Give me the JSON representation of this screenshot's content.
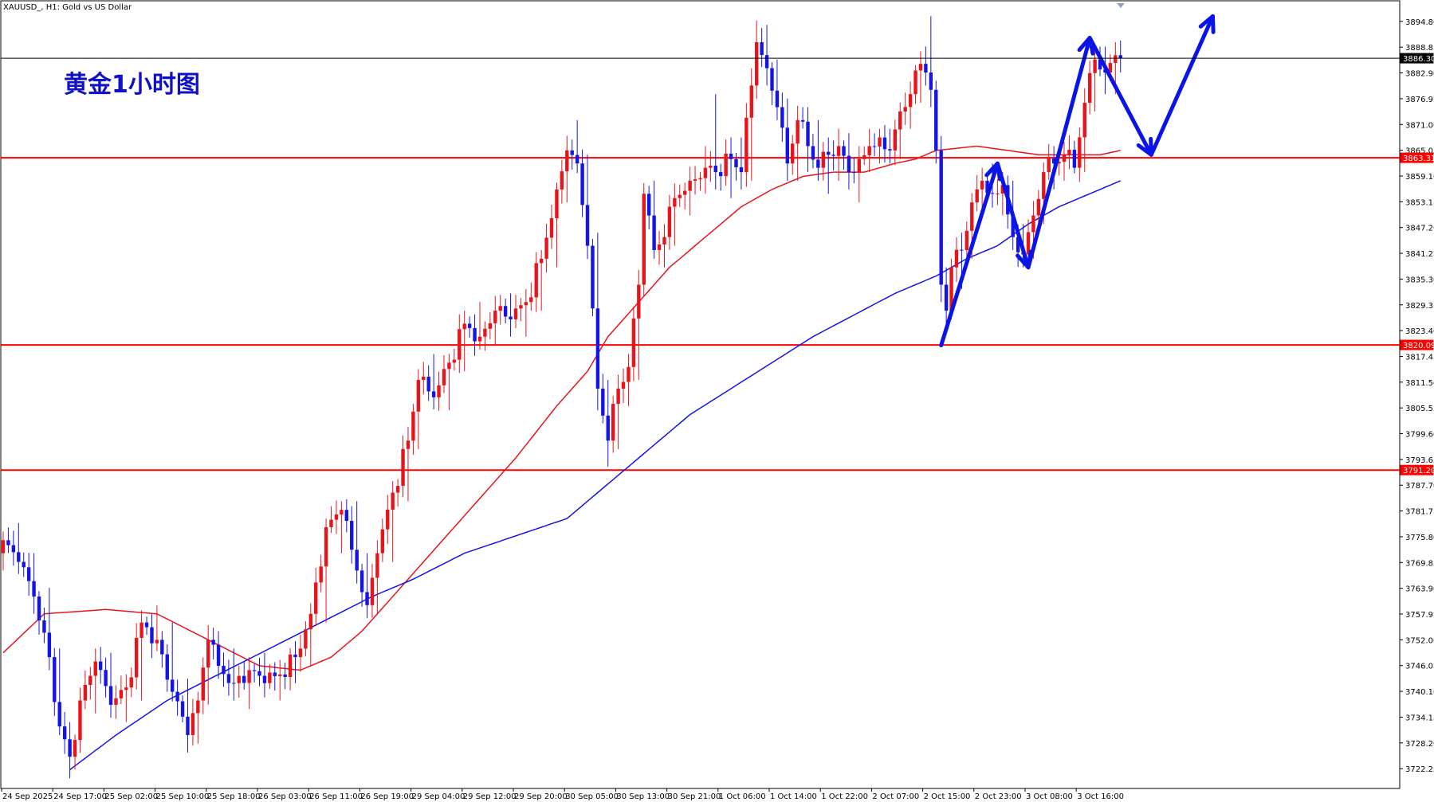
{
  "header": {
    "symbol": "XAUUSD_, H1:  Gold vs US Dollar"
  },
  "annotation": {
    "title": "黄金1小时图"
  },
  "colors": {
    "bull": "#e8141c",
    "bear": "#1414e6",
    "ma_fast": "#e8141c",
    "ma_slow": "#1414e6",
    "level": "#ff0000",
    "arrow": "#0a14e6"
  },
  "chart_data": {
    "type": "candlestick",
    "title": "",
    "ylim": [
      3717.0,
      3899.0
    ],
    "price_axis_ticks": [
      "3894.80",
      "3888.85",
      "3882.90",
      "3876.95",
      "3871.00",
      "3865.05",
      "3859.10",
      "3853.15",
      "3847.20",
      "3841.25",
      "3835.30",
      "3829.35",
      "3823.40",
      "3817.45",
      "3811.50",
      "3805.55",
      "3799.60",
      "3793.65",
      "3787.70",
      "3781.75",
      "3775.80",
      "3769.85",
      "3763.90",
      "3757.95",
      "3752.00",
      "3746.05",
      "3740.10",
      "3734.15",
      "3728.20",
      "3722.25"
    ],
    "time_axis_labels": [
      "24 Sep 2025",
      "24 Sep 17:00",
      "25 Sep 02:00",
      "25 Sep 10:00",
      "25 Sep 18:00",
      "26 Sep 03:00",
      "26 Sep 11:00",
      "26 Sep 19:00",
      "29 Sep 04:00",
      "29 Sep 12:00",
      "29 Sep 20:00",
      "30 Sep 05:00",
      "30 Sep 13:00",
      "30 Sep 21:00",
      "1 Oct 06:00",
      "1 Oct 14:00",
      "1 Oct 22:00",
      "2 Oct 07:00",
      "2 Oct 15:00",
      "2 Oct 23:00",
      "3 Oct 08:00",
      "3 Oct 16:00"
    ],
    "current_price": {
      "value": 3886.3,
      "label": "3886.30"
    },
    "levels": [
      {
        "value": 3863.31,
        "label": "3863.31"
      },
      {
        "value": 3820.09,
        "label": "3820.09"
      },
      {
        "value": 3791.2,
        "label": "3791.20"
      }
    ],
    "ohlc_anchors": [
      [
        0,
        3772,
        3777,
        3768,
        3775
      ],
      [
        3,
        3776,
        3779,
        3768,
        3770
      ],
      [
        6,
        3768,
        3772,
        3758,
        3762
      ],
      [
        9,
        3762,
        3764,
        3745,
        3748
      ],
      [
        11,
        3748,
        3750,
        3730,
        3732
      ],
      [
        13,
        3730,
        3733,
        3720,
        3725
      ],
      [
        15,
        3728,
        3740,
        3726,
        3738
      ],
      [
        18,
        3738,
        3750,
        3735,
        3747
      ],
      [
        21,
        3746,
        3749,
        3734,
        3737
      ],
      [
        24,
        3737,
        3744,
        3733,
        3741
      ],
      [
        27,
        3740,
        3758,
        3738,
        3756
      ],
      [
        30,
        3756,
        3760,
        3750,
        3752
      ],
      [
        33,
        3752,
        3756,
        3738,
        3740
      ],
      [
        36,
        3740,
        3743,
        3726,
        3730
      ],
      [
        38,
        3730,
        3740,
        3728,
        3738
      ],
      [
        40,
        3738,
        3755,
        3737,
        3752
      ],
      [
        42,
        3752,
        3754,
        3743,
        3746
      ],
      [
        45,
        3746,
        3750,
        3738,
        3742
      ],
      [
        48,
        3742,
        3748,
        3736,
        3745
      ],
      [
        51,
        3744,
        3749,
        3740,
        3742
      ],
      [
        54,
        3742,
        3746,
        3738,
        3744
      ],
      [
        57,
        3744,
        3750,
        3742,
        3748
      ],
      [
        60,
        3748,
        3760,
        3746,
        3758
      ],
      [
        63,
        3758,
        3780,
        3756,
        3778
      ],
      [
        66,
        3778,
        3784,
        3772,
        3782
      ],
      [
        69,
        3782,
        3784,
        3765,
        3768
      ],
      [
        71,
        3768,
        3772,
        3757,
        3760
      ],
      [
        73,
        3760,
        3775,
        3758,
        3772
      ],
      [
        76,
        3772,
        3788,
        3770,
        3786
      ],
      [
        79,
        3786,
        3800,
        3784,
        3798
      ],
      [
        81,
        3798,
        3814,
        3796,
        3812
      ],
      [
        84,
        3812,
        3818,
        3806,
        3808
      ],
      [
        87,
        3808,
        3818,
        3805,
        3816
      ],
      [
        90,
        3816,
        3828,
        3814,
        3825
      ],
      [
        93,
        3825,
        3830,
        3819,
        3822
      ],
      [
        96,
        3822,
        3830,
        3820,
        3828
      ],
      [
        99,
        3828,
        3832,
        3822,
        3826
      ],
      [
        102,
        3826,
        3833,
        3822,
        3830
      ],
      [
        105,
        3830,
        3842,
        3828,
        3840
      ],
      [
        108,
        3840,
        3857,
        3838,
        3856
      ],
      [
        110,
        3856,
        3868,
        3853,
        3865
      ],
      [
        112,
        3865,
        3872,
        3860,
        3862
      ],
      [
        114,
        3862,
        3864,
        3840,
        3843
      ],
      [
        116,
        3843,
        3846,
        3805,
        3810
      ],
      [
        118,
        3810,
        3812,
        3792,
        3798
      ],
      [
        120,
        3798,
        3812,
        3796,
        3810
      ],
      [
        122,
        3810,
        3818,
        3806,
        3815
      ],
      [
        124,
        3815,
        3836,
        3812,
        3834
      ],
      [
        125,
        3834,
        3857,
        3832,
        3855
      ],
      [
        127,
        3855,
        3858,
        3840,
        3842
      ],
      [
        129,
        3842,
        3848,
        3838,
        3845
      ],
      [
        131,
        3845,
        3856,
        3843,
        3854
      ],
      [
        134,
        3854,
        3860,
        3850,
        3858
      ],
      [
        137,
        3858,
        3866,
        3855,
        3861
      ],
      [
        139,
        3861,
        3878,
        3856,
        3860
      ],
      [
        142,
        3860,
        3868,
        3854,
        3863
      ],
      [
        144,
        3863,
        3868,
        3856,
        3860
      ],
      [
        146,
        3860,
        3884,
        3858,
        3880
      ],
      [
        147,
        3880,
        3895,
        3878,
        3890
      ],
      [
        149,
        3890,
        3894,
        3880,
        3884
      ],
      [
        151,
        3884,
        3886,
        3872,
        3875
      ],
      [
        153,
        3875,
        3877,
        3858,
        3862
      ],
      [
        155,
        3862,
        3874,
        3858,
        3872
      ],
      [
        157,
        3872,
        3875,
        3860,
        3866
      ],
      [
        159,
        3866,
        3872,
        3858,
        3861
      ],
      [
        161,
        3861,
        3868,
        3855,
        3864
      ],
      [
        163,
        3864,
        3870,
        3858,
        3866
      ],
      [
        165,
        3866,
        3869,
        3856,
        3860
      ],
      [
        167,
        3860,
        3866,
        3853,
        3863
      ],
      [
        169,
        3863,
        3870,
        3860,
        3866
      ],
      [
        171,
        3866,
        3870,
        3862,
        3868
      ],
      [
        173,
        3868,
        3870,
        3862,
        3865
      ],
      [
        175,
        3865,
        3876,
        3863,
        3874
      ],
      [
        177,
        3874,
        3880,
        3870,
        3878
      ],
      [
        179,
        3878,
        3887,
        3876,
        3885
      ],
      [
        180,
        3885,
        3889,
        3880,
        3883
      ],
      [
        181,
        3883,
        3896,
        3875,
        3879
      ],
      [
        182,
        3879,
        3880,
        3862,
        3865
      ],
      [
        183,
        3865,
        3866,
        3830,
        3834
      ],
      [
        184,
        3834,
        3838,
        3825,
        3828
      ],
      [
        185,
        3828,
        3840,
        3826,
        3838
      ],
      [
        187,
        3838,
        3846,
        3833,
        3842
      ],
      [
        189,
        3842,
        3855,
        3840,
        3853
      ],
      [
        191,
        3853,
        3861,
        3850,
        3858
      ],
      [
        193,
        3858,
        3862,
        3852,
        3855
      ],
      [
        195,
        3855,
        3860,
        3850,
        3857
      ],
      [
        197,
        3857,
        3858,
        3842,
        3845
      ],
      [
        199,
        3845,
        3848,
        3838,
        3841
      ],
      [
        201,
        3841,
        3852,
        3840,
        3850
      ],
      [
        203,
        3850,
        3862,
        3848,
        3860
      ],
      [
        205,
        3860,
        3866,
        3856,
        3862
      ],
      [
        207,
        3862,
        3866,
        3858,
        3864
      ],
      [
        209,
        3864,
        3866,
        3860,
        3861
      ],
      [
        211,
        3861,
        3878,
        3860,
        3876
      ],
      [
        213,
        3876,
        3889,
        3874,
        3886
      ],
      [
        215,
        3886,
        3889,
        3878,
        3883
      ],
      [
        217,
        3883,
        3890,
        3878,
        3887
      ],
      [
        218,
        3887,
        3889,
        3883,
        3886.3
      ]
    ],
    "series": [
      {
        "ma_anchors": [
          [
            0,
            3749
          ],
          [
            8,
            3758
          ],
          [
            20,
            3759
          ],
          [
            30,
            3758
          ],
          [
            40,
            3752
          ],
          [
            50,
            3746
          ],
          [
            58,
            3745
          ],
          [
            64,
            3748
          ],
          [
            70,
            3754
          ],
          [
            76,
            3762
          ],
          [
            82,
            3770
          ],
          [
            88,
            3778
          ],
          [
            94,
            3786
          ],
          [
            100,
            3794
          ],
          [
            108,
            3806
          ],
          [
            114,
            3814
          ],
          [
            118,
            3822
          ],
          [
            124,
            3830
          ],
          [
            130,
            3838
          ],
          [
            138,
            3846
          ],
          [
            144,
            3852
          ],
          [
            150,
            3856
          ],
          [
            156,
            3859
          ],
          [
            162,
            3860
          ],
          [
            168,
            3860
          ],
          [
            174,
            3862
          ],
          [
            178,
            3863
          ],
          [
            182,
            3865
          ],
          [
            186,
            3865.5
          ],
          [
            190,
            3866
          ],
          [
            196,
            3865
          ],
          [
            202,
            3864
          ],
          [
            208,
            3864
          ],
          [
            214,
            3864
          ],
          [
            218,
            3865
          ]
        ]
      },
      {
        "ma_anchors": [
          [
            13,
            3722
          ],
          [
            22,
            3730
          ],
          [
            32,
            3738
          ],
          [
            42,
            3744
          ],
          [
            52,
            3750
          ],
          [
            62,
            3756
          ],
          [
            72,
            3762
          ],
          [
            80,
            3766
          ],
          [
            90,
            3772
          ],
          [
            100,
            3776
          ],
          [
            110,
            3780
          ],
          [
            118,
            3788
          ],
          [
            126,
            3796
          ],
          [
            134,
            3804
          ],
          [
            142,
            3810
          ],
          [
            150,
            3816
          ],
          [
            158,
            3822
          ],
          [
            166,
            3827
          ],
          [
            174,
            3832
          ],
          [
            182,
            3836
          ],
          [
            188,
            3840
          ],
          [
            194,
            3843
          ],
          [
            200,
            3848
          ],
          [
            206,
            3852
          ],
          [
            212,
            3855
          ],
          [
            218,
            3858
          ]
        ]
      }
    ]
  }
}
